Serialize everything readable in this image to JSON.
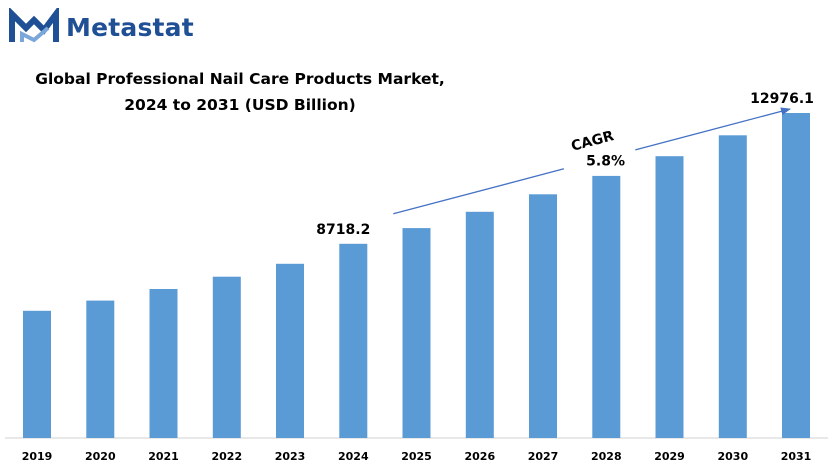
{
  "brand": {
    "name": "Metastat",
    "logo_icon": "metastat-m-logo-icon",
    "color": "#1f4f94"
  },
  "chart_data": {
    "type": "bar",
    "title_line1": "Global Professional Nail Care Products Market,",
    "title_line2": "2024 to 2031 (USD Billion)",
    "categories": [
      "2019",
      "2020",
      "2021",
      "2022",
      "2023",
      "2024",
      "2025",
      "2026",
      "2027",
      "2028",
      "2029",
      "2030",
      "2031"
    ],
    "values": [
      6540,
      6870,
      7250,
      7650,
      8070,
      8718.2,
      9230,
      9760,
      10330,
      10930,
      11570,
      12250,
      12976.1
    ],
    "data_labels": {
      "2024": "8718.2",
      "2031": "12976.1"
    },
    "bar_color": "#5b9bd5",
    "annotation": {
      "label": "CAGR",
      "value": "5.8%",
      "from": "2024",
      "to": "2031",
      "color": "#4472c4"
    },
    "ylim": [
      2400,
      13200
    ],
    "grid": false,
    "legend": false
  }
}
